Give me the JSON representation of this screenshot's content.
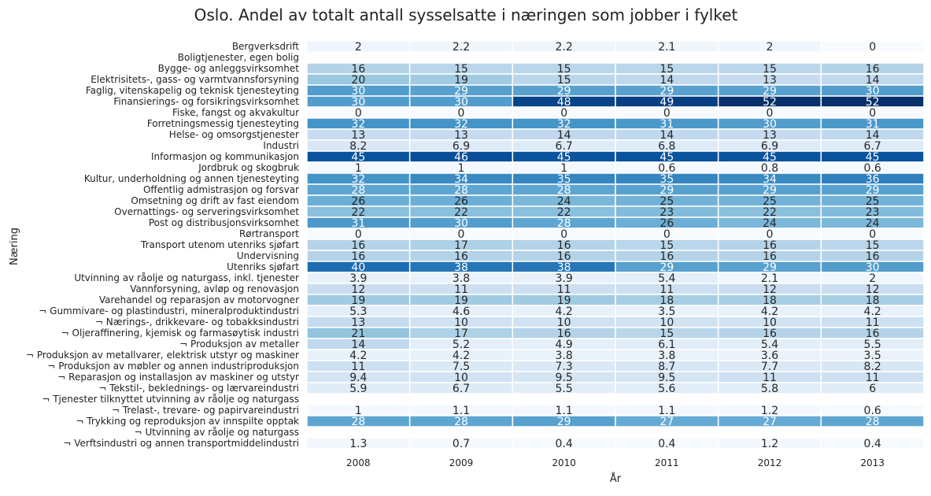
{
  "chart_data": {
    "type": "heatmap",
    "title": "Oslo. Andel av totalt antall sysselsatte i næringen som jobber i fylket",
    "xlabel": "År",
    "ylabel": "Næring",
    "columns": [
      "2008",
      "2009",
      "2010",
      "2011",
      "2012",
      "2013"
    ],
    "rows": [
      {
        "label": "Bergverksdrift",
        "values": [
          2,
          2.2,
          2.2,
          2.1,
          2,
          0
        ]
      },
      {
        "label": "Boligtjenester, egen bolig",
        "values": [
          null,
          null,
          null,
          null,
          null,
          null
        ]
      },
      {
        "label": "Bygge- og anleggsvirksomhet",
        "values": [
          16,
          15,
          15,
          15,
          15,
          16
        ]
      },
      {
        "label": "Elektrisitets-, gass- og varmtvannsforsyning",
        "values": [
          20,
          19,
          15,
          14,
          13,
          14
        ]
      },
      {
        "label": "Faglig, vitenskapelig og teknisk tjenesteyting",
        "values": [
          30,
          29,
          29,
          29,
          29,
          30
        ]
      },
      {
        "label": "Finansierings- og forsikringsvirksomhet",
        "values": [
          30,
          30,
          48,
          49,
          52,
          52
        ]
      },
      {
        "label": "Fiske, fangst og akvakultur",
        "values": [
          0,
          0,
          0,
          0,
          0,
          0
        ]
      },
      {
        "label": "Forretningsmessig tjenesteyting",
        "values": [
          32,
          32,
          32,
          31,
          30,
          31
        ]
      },
      {
        "label": "Helse- og omsorgstjenester",
        "values": [
          13,
          13,
          14,
          14,
          13,
          14
        ]
      },
      {
        "label": "Industri",
        "values": [
          8.2,
          6.9,
          6.7,
          6.8,
          6.9,
          6.7
        ]
      },
      {
        "label": "Informasjon og kommunikasjon",
        "values": [
          45,
          46,
          45,
          45,
          45,
          45
        ]
      },
      {
        "label": "Jordbruk og skogbruk",
        "values": [
          1,
          1,
          1,
          0.6,
          0.8,
          0.6
        ]
      },
      {
        "label": "Kultur, underholdning og annen tjenesteyting",
        "values": [
          32,
          34,
          35,
          35,
          34,
          36
        ]
      },
      {
        "label": "Offentlig admistrasjon og forsvar",
        "values": [
          28,
          28,
          28,
          29,
          29,
          29
        ]
      },
      {
        "label": "Omsetning og drift av fast eiendom",
        "values": [
          26,
          26,
          24,
          25,
          25,
          25
        ]
      },
      {
        "label": "Overnattings- og serveringsvirksomhet",
        "values": [
          22,
          22,
          22,
          23,
          22,
          23
        ]
      },
      {
        "label": "Post og distribusjonsvirksomhet",
        "values": [
          31,
          30,
          28,
          26,
          24,
          24
        ]
      },
      {
        "label": "Rørtransport",
        "values": [
          0,
          0,
          0,
          0,
          0,
          0
        ]
      },
      {
        "label": "Transport utenom utenriks sjøfart",
        "values": [
          16,
          17,
          16,
          15,
          16,
          15
        ]
      },
      {
        "label": "Undervisning",
        "values": [
          16,
          16,
          16,
          16,
          16,
          16
        ]
      },
      {
        "label": "Utenriks sjøfart",
        "values": [
          40,
          38,
          38,
          29,
          29,
          30
        ]
      },
      {
        "label": "Utvinning av råolje og naturgass, inkl. tjenester",
        "values": [
          3.9,
          3.8,
          3.9,
          5.4,
          2.1,
          2
        ]
      },
      {
        "label": "Vannforsyning, avløp og renovasjon",
        "values": [
          12,
          11,
          11,
          11,
          12,
          12
        ]
      },
      {
        "label": "Varehandel og reparasjon av motorvogner",
        "values": [
          19,
          19,
          19,
          18,
          18,
          18
        ]
      },
      {
        "label": "¬ Gummivare- og plastindustri, mineralproduktindustri",
        "values": [
          5.3,
          4.6,
          4.2,
          3.5,
          4.2,
          4.2
        ]
      },
      {
        "label": "¬ Nærings-, drikkevare- og tobakksindustri",
        "values": [
          13,
          10,
          10,
          10,
          10,
          11
        ]
      },
      {
        "label": "¬ Oljeraffinering, kjemisk og farmasøytisk industri",
        "values": [
          21,
          17,
          16,
          15,
          16,
          16
        ]
      },
      {
        "label": "¬ Produksjon av metaller",
        "values": [
          14,
          5.2,
          4.9,
          6.1,
          5.4,
          5.5
        ]
      },
      {
        "label": "¬ Produksjon av metallvarer, elektrisk utstyr og maskiner",
        "values": [
          4.2,
          4.2,
          3.8,
          3.8,
          3.6,
          3.5
        ]
      },
      {
        "label": "¬ Produksjon av møbler og annen industriproduksjon",
        "values": [
          11,
          7.5,
          7.3,
          8.7,
          7.7,
          8.2
        ]
      },
      {
        "label": "¬ Reparasjon og installasjon av maskiner og utstyr",
        "values": [
          9.4,
          10,
          9.5,
          9.5,
          11,
          11
        ]
      },
      {
        "label": "¬ Tekstil-, beklednings- og lærvareindustri",
        "values": [
          5.9,
          6.7,
          5.5,
          5.6,
          5.8,
          6
        ]
      },
      {
        "label": "¬ Tjenester tilknyttet utvinning av råolje og naturgass",
        "values": [
          null,
          null,
          null,
          null,
          null,
          null
        ]
      },
      {
        "label": "¬ Trelast-, trevare- og papirvareindustri",
        "values": [
          1,
          1.1,
          1.1,
          1.1,
          1.2,
          0.6
        ]
      },
      {
        "label": "¬ Trykking og reproduksjon av innspilte opptak",
        "values": [
          28,
          28,
          29,
          27,
          27,
          28
        ]
      },
      {
        "label": "¬ Utvinning av råolje og naturgass",
        "values": [
          null,
          null,
          null,
          null,
          null,
          null
        ]
      },
      {
        "label": "¬ Verftsindustri og annen transportmiddelindustri",
        "values": [
          1.3,
          0.7,
          0.4,
          0.4,
          1.2,
          0.4
        ]
      }
    ],
    "color_range": [
      0,
      52
    ],
    "colormap": "Blues",
    "colors": {
      "low": "#f7fbff",
      "mid": "#6baed6",
      "high": "#08306b",
      "text_dark": "#262626",
      "text_light": "#ffffff"
    }
  }
}
